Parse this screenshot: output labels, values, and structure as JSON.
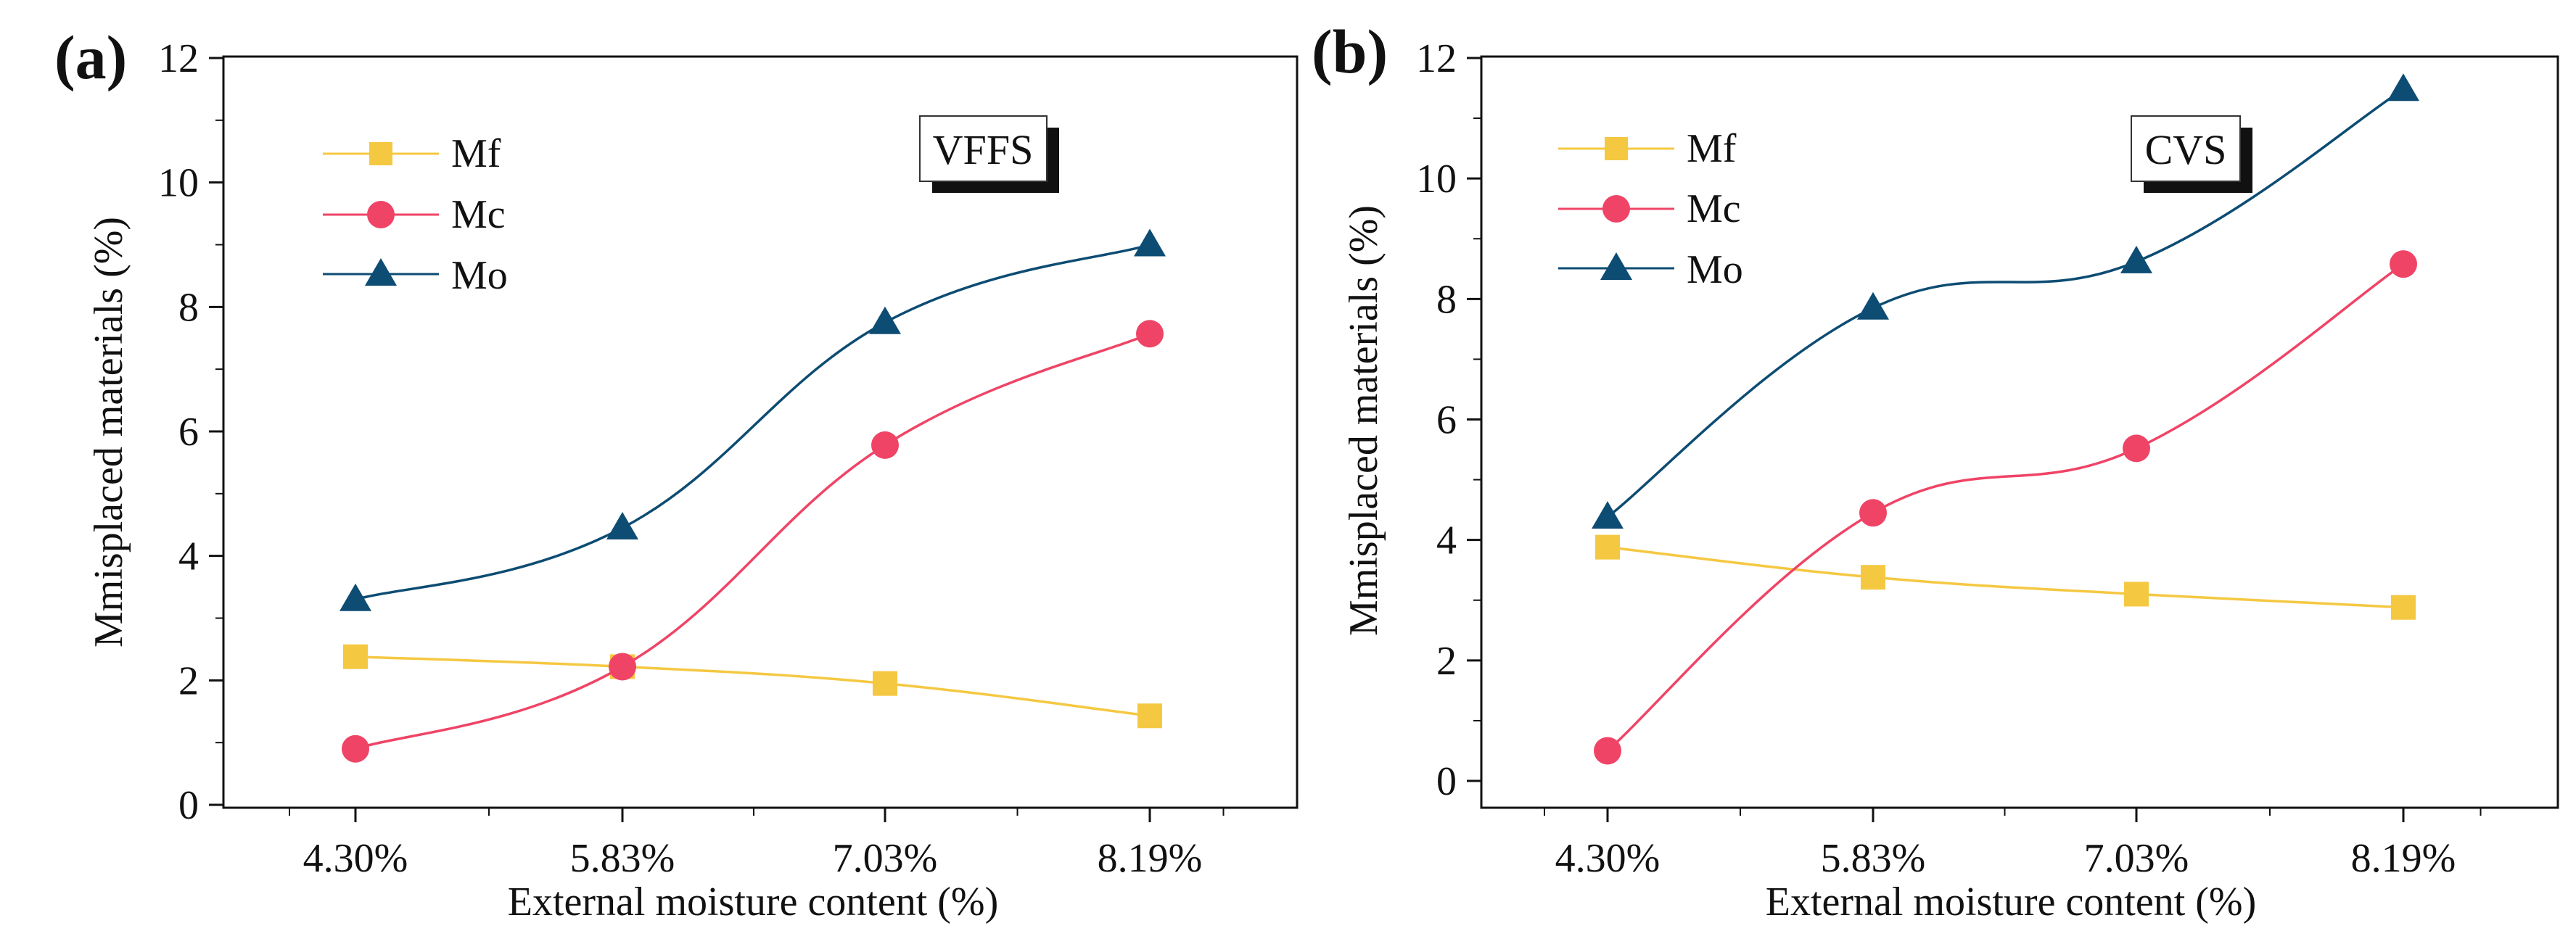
{
  "chart_data": [
    {
      "panel": "(a)",
      "type": "line",
      "inset_label": "VFFS",
      "xlabel": "External moisture content (%)",
      "ylabel": "Mmisplaced materials (%)",
      "categories": [
        "4.30%",
        "5.83%",
        "7.03%",
        "8.19%"
      ],
      "ylim": [
        0,
        12
      ],
      "yticks": [
        "0",
        "2",
        "4",
        "6",
        "8",
        "10",
        "12"
      ],
      "legend_position": "top-left",
      "series": [
        {
          "name": "Mf",
          "marker": "square",
          "color": "#F5C842",
          "values": [
            2.38,
            2.22,
            1.95,
            1.43
          ]
        },
        {
          "name": "Mc",
          "marker": "circle",
          "color": "#EF4466",
          "values": [
            0.9,
            2.22,
            5.78,
            7.57
          ]
        },
        {
          "name": "Mo",
          "marker": "triangle",
          "color": "#0D4C73",
          "values": [
            3.3,
            4.45,
            7.75,
            9.0
          ]
        }
      ]
    },
    {
      "panel": "(b)",
      "type": "line",
      "inset_label": "CVS",
      "xlabel": "External moisture content (%)",
      "ylabel": "Mmisplaced materials (%)",
      "categories": [
        "4.30%",
        "5.83%",
        "7.03%",
        "8.19%"
      ],
      "ylim": [
        -0.5,
        12
      ],
      "yticks": [
        "0",
        "2",
        "4",
        "6",
        "8",
        "10",
        "12"
      ],
      "legend_position": "top-left",
      "series": [
        {
          "name": "Mf",
          "marker": "square",
          "color": "#F5C842",
          "values": [
            3.88,
            3.38,
            3.1,
            2.88
          ]
        },
        {
          "name": "Mc",
          "marker": "circle",
          "color": "#EF4466",
          "values": [
            0.5,
            4.45,
            5.52,
            8.58
          ]
        },
        {
          "name": "Mo",
          "marker": "triangle",
          "color": "#0D4C73",
          "values": [
            4.38,
            7.85,
            8.62,
            11.48
          ]
        }
      ]
    }
  ]
}
